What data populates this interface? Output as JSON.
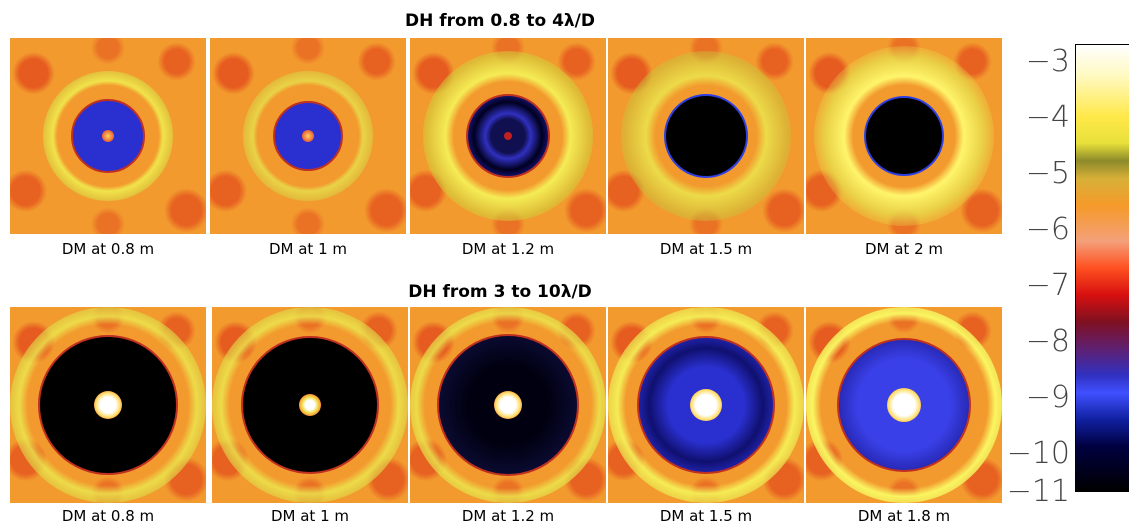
{
  "title_top": "DH  from 0.8 to 4λ/D",
  "title_bottom": "DH from 3 to 10λ/D",
  "top_captions": [
    "DM at 0.8 m",
    "DM at 1 m",
    "DM at 1.2 m",
    "DM at 1.5 m",
    "DM at 2 m"
  ],
  "bottom_captions": [
    "DM at 0.8 m",
    "DM at 1 m",
    "DM at 1.2 m",
    "DM at 1.5 m",
    "DM at 1.8 m"
  ],
  "colorbar_ticks": [
    "−3",
    "−4",
    "−5",
    "−6",
    "−7",
    "−8",
    "−9",
    "−10",
    "−11"
  ],
  "colors": {
    "background_field": "#f29a2e",
    "ring_yellow": "#e8e84a",
    "hole_black": "#000000",
    "hole_blue": "#2a2ad8",
    "core_white": "#fff8d0"
  }
}
